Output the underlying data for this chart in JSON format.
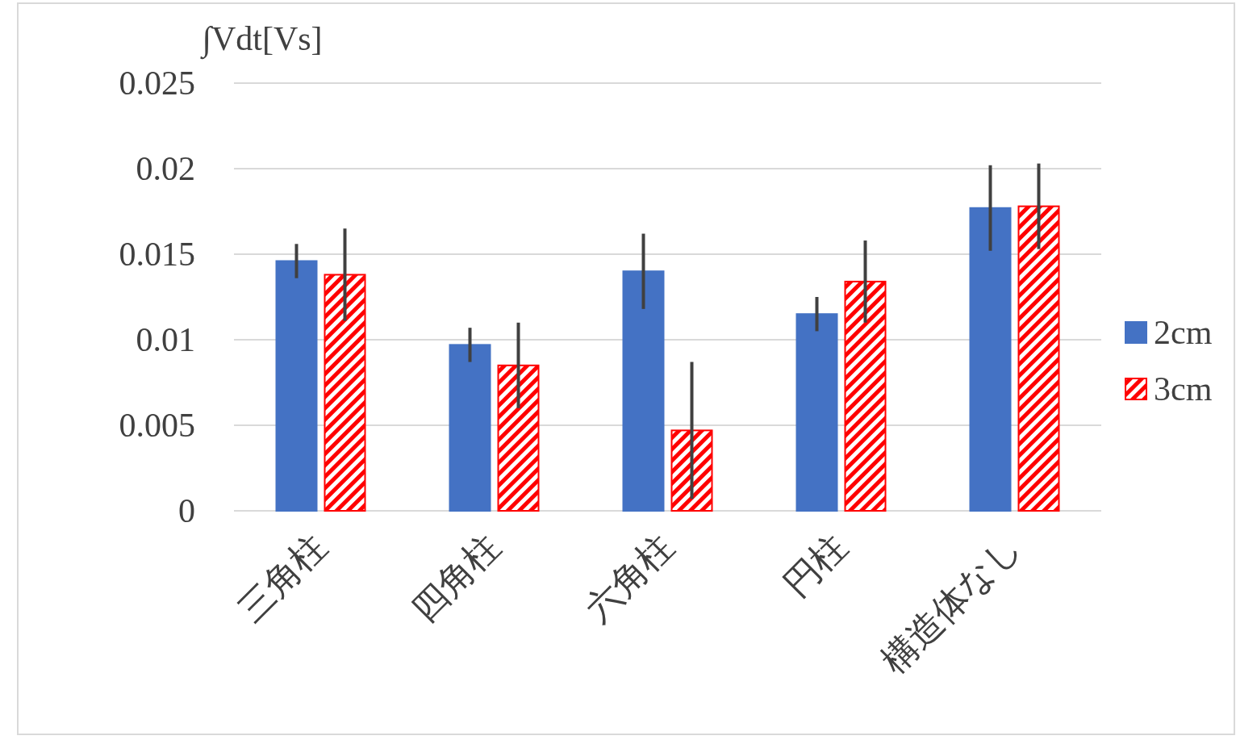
{
  "chart_data": {
    "type": "bar",
    "ylabel": "∫Vdt[Vs]",
    "categories": [
      "三角柱",
      "四角柱",
      "六角柱",
      "円柱",
      "構造体なし"
    ],
    "series": [
      {
        "name": "2cm",
        "color": "#4472c4",
        "values": [
          0.0146,
          0.0097,
          0.014,
          0.0115,
          0.0177
        ],
        "errors": [
          0.001,
          0.001,
          0.0022,
          0.001,
          0.0025
        ]
      },
      {
        "name": "3cm",
        "color": "#ff0000",
        "values": [
          0.0138,
          0.0085,
          0.0047,
          0.0134,
          0.0178
        ],
        "errors": [
          0.0027,
          0.0025,
          0.004,
          0.0024,
          0.0025
        ]
      }
    ],
    "ylim": [
      0,
      0.025
    ],
    "yticks": [
      0,
      0.005,
      0.01,
      0.015,
      0.02,
      0.025
    ],
    "grid": "y",
    "legend": "right"
  }
}
